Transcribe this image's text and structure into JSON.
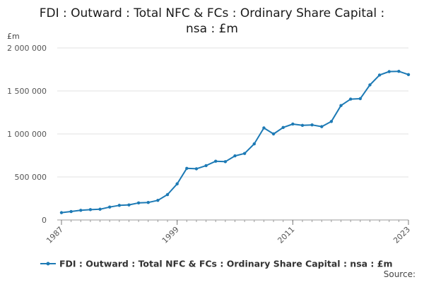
{
  "title_line1": "FDI : Outward : Total NFC & FCs : Ordinary Share Capital :",
  "title_line2": "nsa : £m",
  "source_label": "Source:",
  "chart_data": {
    "type": "line",
    "ylabel": "£m",
    "ylim": [
      0,
      2000000
    ],
    "yticks": [
      0,
      500000,
      1000000,
      1500000,
      2000000
    ],
    "ytick_labels": [
      "0",
      "500 000",
      "1 000 000",
      "1 500 000",
      "2 000 000"
    ],
    "xlim": [
      1987,
      2023
    ],
    "xticks": [
      1987,
      1999,
      2011,
      2023
    ],
    "xtick_labels": [
      "1987",
      "1999",
      "2011",
      "2023"
    ],
    "grid": true,
    "legend_position": "bottom",
    "color": "#1d7ab5",
    "series": [
      {
        "name": "FDI : Outward : Total NFC & FCs : Ordinary Share Capital : nsa : £m",
        "x": [
          1987,
          1988,
          1989,
          1990,
          1991,
          1992,
          1993,
          1994,
          1995,
          1996,
          1997,
          1998,
          1999,
          2000,
          2001,
          2002,
          2003,
          2004,
          2005,
          2006,
          2007,
          2008,
          2009,
          2010,
          2011,
          2012,
          2013,
          2014,
          2015,
          2016,
          2017,
          2018,
          2019,
          2020,
          2021,
          2022,
          2023
        ],
        "values": [
          85000,
          98000,
          112000,
          120000,
          125000,
          150000,
          170000,
          175000,
          198000,
          203000,
          228000,
          295000,
          420000,
          600000,
          595000,
          632000,
          683000,
          678000,
          745000,
          773000,
          885000,
          1070000,
          1000000,
          1075000,
          1115000,
          1100000,
          1105000,
          1085000,
          1145000,
          1330000,
          1405000,
          1410000,
          1570000,
          1685000,
          1725000,
          1728000,
          1690000
        ]
      }
    ]
  }
}
